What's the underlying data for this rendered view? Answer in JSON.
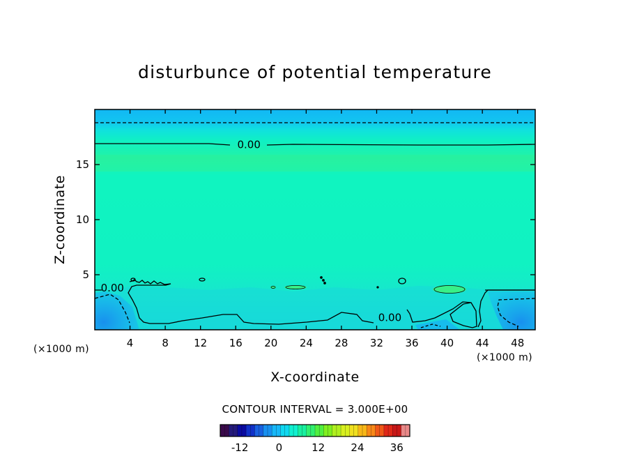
{
  "chart_data": {
    "type": "heatmap",
    "title": "disturbunce of potential temperature",
    "xlabel": "X-coordinate",
    "ylabel": "Z-coordinate",
    "x_unit": "(×1000 m)",
    "xlim": [
      0,
      50
    ],
    "ylim": [
      0,
      20
    ],
    "x_ticks": [
      4,
      8,
      12,
      16,
      20,
      24,
      28,
      32,
      36,
      40,
      44,
      48
    ],
    "y_ticks": [
      5,
      10,
      15
    ],
    "contour_interval_text": "CONTOUR INTERVAL = 3.000E+00",
    "contour_labels": [
      {
        "text": "0.00",
        "x": 17.5,
        "z": 16.8
      },
      {
        "text": "0.00",
        "x": 2.0,
        "z": 3.8
      },
      {
        "text": "0.00",
        "x": 33.5,
        "z": 1.1
      }
    ],
    "colorbar": {
      "min": -18,
      "max": 40,
      "ticks": [
        -12,
        0,
        12,
        24,
        36
      ],
      "colors": [
        "#3a0a4a",
        "#241a7a",
        "#0a0aa0",
        "#1030c8",
        "#1860e0",
        "#1890f0",
        "#18b8f8",
        "#10d8f0",
        "#10f0d0",
        "#18f0a0",
        "#30f070",
        "#50f040",
        "#80f020",
        "#b0f020",
        "#d8f020",
        "#f0e020",
        "#f8b818",
        "#f88818",
        "#f05818",
        "#e02818",
        "#c81818",
        "#e88888"
      ]
    }
  }
}
